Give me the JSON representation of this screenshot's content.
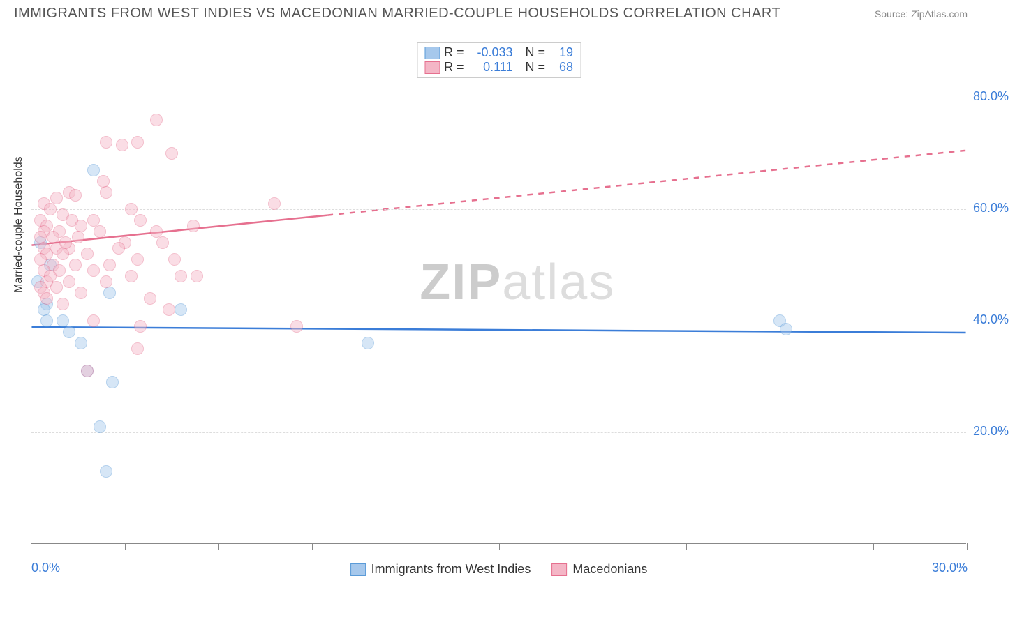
{
  "title": "IMMIGRANTS FROM WEST INDIES VS MACEDONIAN MARRIED-COUPLE HOUSEHOLDS CORRELATION CHART",
  "source": "Source: ZipAtlas.com",
  "ylabel": "Married-couple Households",
  "watermark_bold": "ZIP",
  "watermark_light": "atlas",
  "chart": {
    "type": "scatter-with-regression",
    "background_color": "#ffffff",
    "grid_color": "#dddddd",
    "axis_color": "#888888",
    "tick_label_color": "#3b7dd8",
    "tick_fontsize": 18,
    "label_fontsize": 16,
    "xlim": [
      0,
      30
    ],
    "ylim": [
      0,
      90
    ],
    "yticks": [
      {
        "value": 20,
        "label": "20.0%"
      },
      {
        "value": 40,
        "label": "40.0%"
      },
      {
        "value": 60,
        "label": "60.0%"
      },
      {
        "value": 80,
        "label": "80.0%"
      }
    ],
    "xticks": [
      {
        "value": 0,
        "label": "0.0%"
      },
      {
        "value": 30,
        "label": "30.0%"
      }
    ],
    "xtick_marks": [
      3,
      6,
      9,
      12,
      15,
      18,
      21,
      24,
      27,
      30
    ],
    "point_radius": 9,
    "point_opacity": 0.45,
    "point_border_opacity": 0.9,
    "line_width": 2.5
  },
  "series": [
    {
      "key": "west_indies",
      "label": "Immigrants from West Indies",
      "color_fill": "#a6c8ec",
      "color_border": "#5a9bd8",
      "line_color": "#3b7dd8",
      "regression": {
        "x1": 0,
        "y1": 38.8,
        "x2": 30,
        "y2": 37.8,
        "solid_until_x": 30
      },
      "stats": {
        "R": "-0.033",
        "N": "19"
      },
      "points": [
        {
          "x": 0.5,
          "y": 43
        },
        {
          "x": 0.4,
          "y": 42
        },
        {
          "x": 2.0,
          "y": 67
        },
        {
          "x": 2.5,
          "y": 45
        },
        {
          "x": 1.2,
          "y": 38
        },
        {
          "x": 1.6,
          "y": 36
        },
        {
          "x": 1.8,
          "y": 31
        },
        {
          "x": 2.6,
          "y": 29
        },
        {
          "x": 2.2,
          "y": 21
        },
        {
          "x": 2.4,
          "y": 13
        },
        {
          "x": 4.8,
          "y": 42
        },
        {
          "x": 0.5,
          "y": 40
        },
        {
          "x": 10.8,
          "y": 36
        },
        {
          "x": 24.0,
          "y": 40
        },
        {
          "x": 24.2,
          "y": 38.5
        },
        {
          "x": 0.3,
          "y": 54
        },
        {
          "x": 0.6,
          "y": 50
        },
        {
          "x": 0.2,
          "y": 47
        },
        {
          "x": 1.0,
          "y": 40
        }
      ]
    },
    {
      "key": "macedonians",
      "label": "Macedonians",
      "color_fill": "#f4b6c6",
      "color_border": "#e6708f",
      "line_color": "#e6708f",
      "regression": {
        "x1": 0,
        "y1": 53.5,
        "x2": 30,
        "y2": 70.5,
        "solid_until_x": 9.5
      },
      "stats": {
        "R": "0.111",
        "N": "68"
      },
      "points": [
        {
          "x": 4.0,
          "y": 76
        },
        {
          "x": 2.4,
          "y": 72
        },
        {
          "x": 2.9,
          "y": 71.5
        },
        {
          "x": 3.4,
          "y": 72
        },
        {
          "x": 4.5,
          "y": 70
        },
        {
          "x": 2.3,
          "y": 65
        },
        {
          "x": 2.4,
          "y": 63
        },
        {
          "x": 1.2,
          "y": 63
        },
        {
          "x": 1.4,
          "y": 62.5
        },
        {
          "x": 0.8,
          "y": 62
        },
        {
          "x": 0.4,
          "y": 61
        },
        {
          "x": 3.2,
          "y": 60
        },
        {
          "x": 7.8,
          "y": 61
        },
        {
          "x": 0.6,
          "y": 60
        },
        {
          "x": 1.0,
          "y": 59
        },
        {
          "x": 0.3,
          "y": 58
        },
        {
          "x": 1.3,
          "y": 58
        },
        {
          "x": 2.0,
          "y": 58
        },
        {
          "x": 3.5,
          "y": 58
        },
        {
          "x": 0.5,
          "y": 57
        },
        {
          "x": 1.6,
          "y": 57
        },
        {
          "x": 5.2,
          "y": 57
        },
        {
          "x": 0.4,
          "y": 56
        },
        {
          "x": 0.9,
          "y": 56
        },
        {
          "x": 2.2,
          "y": 56
        },
        {
          "x": 4.0,
          "y": 56
        },
        {
          "x": 0.3,
          "y": 55
        },
        {
          "x": 0.7,
          "y": 55
        },
        {
          "x": 1.5,
          "y": 55
        },
        {
          "x": 3.0,
          "y": 54
        },
        {
          "x": 4.2,
          "y": 54
        },
        {
          "x": 0.4,
          "y": 53
        },
        {
          "x": 0.8,
          "y": 53
        },
        {
          "x": 1.2,
          "y": 53
        },
        {
          "x": 2.8,
          "y": 53
        },
        {
          "x": 0.5,
          "y": 52
        },
        {
          "x": 1.0,
          "y": 52
        },
        {
          "x": 1.8,
          "y": 52
        },
        {
          "x": 3.4,
          "y": 51
        },
        {
          "x": 4.6,
          "y": 51
        },
        {
          "x": 0.3,
          "y": 51
        },
        {
          "x": 0.7,
          "y": 50
        },
        {
          "x": 1.4,
          "y": 50
        },
        {
          "x": 2.5,
          "y": 50
        },
        {
          "x": 0.4,
          "y": 49
        },
        {
          "x": 0.9,
          "y": 49
        },
        {
          "x": 2.0,
          "y": 49
        },
        {
          "x": 3.2,
          "y": 48
        },
        {
          "x": 4.8,
          "y": 48
        },
        {
          "x": 5.3,
          "y": 48
        },
        {
          "x": 0.5,
          "y": 47
        },
        {
          "x": 1.2,
          "y": 47
        },
        {
          "x": 2.4,
          "y": 47
        },
        {
          "x": 0.3,
          "y": 46
        },
        {
          "x": 0.8,
          "y": 46
        },
        {
          "x": 1.6,
          "y": 45
        },
        {
          "x": 0.4,
          "y": 45
        },
        {
          "x": 3.8,
          "y": 44
        },
        {
          "x": 4.4,
          "y": 42
        },
        {
          "x": 0.5,
          "y": 44
        },
        {
          "x": 1.0,
          "y": 43
        },
        {
          "x": 3.5,
          "y": 39
        },
        {
          "x": 3.4,
          "y": 35
        },
        {
          "x": 8.5,
          "y": 39
        },
        {
          "x": 2.0,
          "y": 40
        },
        {
          "x": 1.8,
          "y": 31
        },
        {
          "x": 0.6,
          "y": 48
        },
        {
          "x": 1.1,
          "y": 54
        }
      ]
    }
  ],
  "stats_labels": {
    "R": "R =",
    "N": "N ="
  }
}
